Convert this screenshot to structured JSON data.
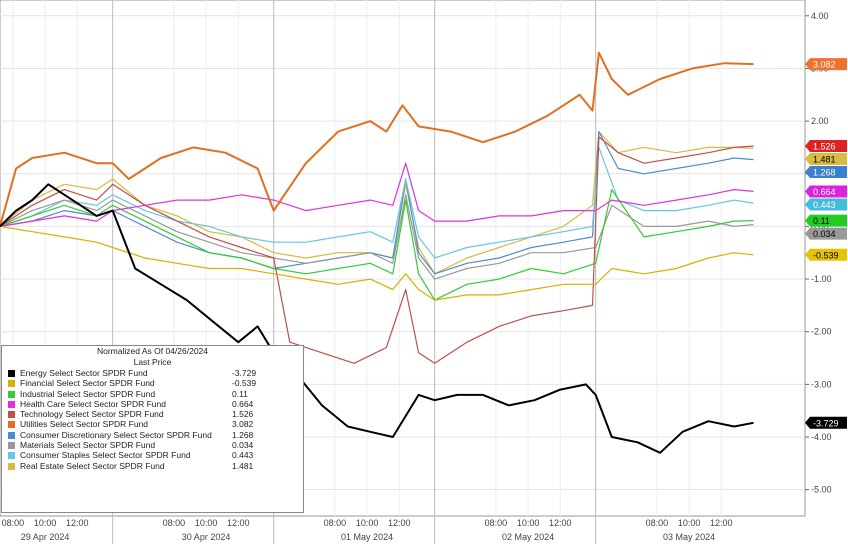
{
  "chart_data": {
    "type": "line",
    "ylim": [
      -5.5,
      4.3
    ],
    "y_ticks": [
      "4.00",
      "3.00",
      "2.00",
      "1.00",
      "0.00",
      "-1.00",
      "-2.00",
      "-3.00",
      "-4.00",
      "-5.00"
    ],
    "y_tick_values": [
      4,
      3,
      2,
      1,
      0,
      -1,
      -2,
      -3,
      -4,
      -5
    ],
    "x_tick_labels": [
      "08:00",
      "10:00",
      "12:00",
      "08:00",
      "10:00",
      "12:00",
      "08:00",
      "10:00",
      "12:00",
      "08:00",
      "10:00",
      "12:00",
      "08:00",
      "10:00",
      "12:00"
    ],
    "x_tick_positions": [
      0.4,
      1.4,
      2.4,
      5.4,
      6.4,
      7.4,
      10.4,
      11.4,
      12.4,
      15.4,
      16.4,
      17.4,
      20.4,
      21.4,
      22.4
    ],
    "date_labels": [
      "29 Apr 2024",
      "30 Apr 2024",
      "01 May 2024",
      "02 May 2024",
      "03 May 2024"
    ],
    "date_centers": [
      1.4,
      6.4,
      11.4,
      16.4,
      21.4
    ],
    "session_breaks": [
      3.5,
      8.5,
      13.5,
      18.5
    ],
    "grid": true,
    "legend_position": "bottom-left",
    "legend": {
      "title": "Normalized As Of 04/26/2024",
      "subtitle": "Last Price"
    },
    "series": [
      {
        "name": "Energy Select Sector SPDR Fund",
        "last": "-3.729",
        "color": "#000000",
        "label_bg": "#000000",
        "label_fg": "#ffffff",
        "x": [
          0,
          0.5,
          1.0,
          1.5,
          2.0,
          2.5,
          3.0,
          3.5,
          4.2,
          5.0,
          5.8,
          6.6,
          7.4,
          8.0,
          8.5,
          9.2,
          10.0,
          10.8,
          11.5,
          12.2,
          12.6,
          13.0,
          13.5,
          14.2,
          15.0,
          15.8,
          16.6,
          17.4,
          18.2,
          18.5,
          19.0,
          19.8,
          20.5,
          21.2,
          22.0,
          22.8,
          23.4
        ],
        "y": [
          0.0,
          0.3,
          0.5,
          0.8,
          0.6,
          0.4,
          0.2,
          0.3,
          -0.8,
          -1.1,
          -1.4,
          -1.8,
          -2.2,
          -1.9,
          -2.4,
          -2.8,
          -3.4,
          -3.8,
          -3.9,
          -4.0,
          -3.6,
          -3.2,
          -3.3,
          -3.2,
          -3.2,
          -3.4,
          -3.3,
          -3.1,
          -3.0,
          -3.2,
          -4.0,
          -4.1,
          -4.3,
          -3.9,
          -3.7,
          -3.8,
          -3.729
        ]
      },
      {
        "name": "Financial Select Sector SPDR Fund",
        "last": "-0.539",
        "color": "#d6b100",
        "label_bg": "#e8c400",
        "label_fg": "#000000",
        "x": [
          0,
          1.0,
          2.0,
          3.0,
          3.5,
          4.5,
          5.5,
          6.5,
          7.5,
          8.5,
          9.5,
          10.5,
          11.5,
          12.2,
          12.6,
          13.0,
          13.5,
          14.5,
          15.5,
          16.5,
          17.5,
          18.5,
          19.0,
          20.0,
          21.0,
          22.0,
          22.8,
          23.4
        ],
        "y": [
          0.0,
          -0.1,
          -0.2,
          -0.3,
          -0.4,
          -0.6,
          -0.7,
          -0.8,
          -0.8,
          -0.9,
          -1.0,
          -1.1,
          -1.0,
          -1.2,
          -0.9,
          -1.2,
          -1.4,
          -1.3,
          -1.3,
          -1.2,
          -1.1,
          -1.1,
          -0.8,
          -0.9,
          -0.8,
          -0.6,
          -0.5,
          -0.539
        ]
      },
      {
        "name": "Industrial Select Sector SPDR Fund",
        "last": "0.11",
        "color": "#33cc33",
        "label_bg": "#22cc22",
        "label_fg": "#000000",
        "x": [
          0,
          1.0,
          2.0,
          3.0,
          3.5,
          4.5,
          5.5,
          6.5,
          7.5,
          8.5,
          9.5,
          10.5,
          11.5,
          12.2,
          12.6,
          13.0,
          13.5,
          14.5,
          15.5,
          16.5,
          17.5,
          18.5,
          19.0,
          20.0,
          21.0,
          22.0,
          22.8,
          23.4
        ],
        "y": [
          0.0,
          0.2,
          0.4,
          0.2,
          0.4,
          0.1,
          -0.2,
          -0.5,
          -0.6,
          -0.8,
          -0.9,
          -0.8,
          -0.7,
          -0.9,
          0.5,
          -0.9,
          -1.4,
          -1.1,
          -1.0,
          -0.8,
          -0.9,
          -0.7,
          0.7,
          -0.2,
          -0.1,
          0.0,
          0.1,
          0.11
        ]
      },
      {
        "name": "Health Care Select Sector SPDR Fund",
        "last": "0.664",
        "color": "#dd33dd",
        "label_bg": "#dd22dd",
        "label_fg": "#ffffff",
        "x": [
          0,
          1.0,
          2.0,
          3.0,
          3.5,
          4.5,
          5.5,
          6.5,
          7.5,
          8.5,
          9.5,
          10.5,
          11.5,
          12.2,
          12.6,
          13.0,
          13.5,
          14.5,
          15.5,
          16.5,
          17.5,
          18.5,
          19.0,
          20.0,
          21.0,
          22.0,
          22.8,
          23.4
        ],
        "y": [
          0.0,
          0.1,
          0.2,
          0.1,
          0.3,
          0.4,
          0.5,
          0.5,
          0.6,
          0.5,
          0.3,
          0.4,
          0.5,
          0.4,
          1.2,
          0.3,
          0.1,
          0.1,
          0.2,
          0.2,
          0.3,
          0.3,
          0.5,
          0.4,
          0.5,
          0.6,
          0.7,
          0.664
        ]
      },
      {
        "name": "Technology Select Sector SPDR Fund",
        "last": "1.526",
        "color": "#c0504d",
        "label_bg": "#dd2222",
        "label_fg": "#ffffff",
        "x": [
          0,
          1.0,
          2.0,
          3.0,
          3.5,
          4.5,
          5.5,
          6.5,
          7.5,
          8.5,
          9.0,
          10.0,
          11.0,
          12.0,
          12.6,
          13.0,
          13.5,
          14.5,
          15.5,
          16.5,
          17.5,
          18.4,
          18.6,
          19.2,
          20.0,
          21.0,
          22.0,
          22.8,
          23.4
        ],
        "y": [
          0.0,
          0.4,
          0.7,
          0.5,
          0.8,
          0.4,
          0.1,
          -0.2,
          -0.4,
          -0.6,
          -2.2,
          -2.4,
          -2.6,
          -2.3,
          -1.2,
          -2.4,
          -2.6,
          -2.2,
          -1.9,
          -1.7,
          -1.6,
          -1.5,
          1.7,
          1.4,
          1.2,
          1.3,
          1.4,
          1.5,
          1.526
        ]
      },
      {
        "name": "Utilities Select Sector SPDR Fund",
        "last": "3.082",
        "color": "#e07020",
        "label_bg": "#f07030",
        "label_fg": "#ffffff",
        "x": [
          0,
          0.5,
          1.0,
          2.0,
          3.0,
          3.5,
          4.0,
          5.0,
          6.0,
          7.0,
          8.0,
          8.5,
          9.5,
          10.5,
          11.5,
          12.0,
          12.5,
          13.0,
          14.0,
          15.0,
          16.0,
          17.0,
          18.0,
          18.4,
          18.6,
          19.0,
          19.5,
          20.5,
          21.5,
          22.5,
          23.4
        ],
        "y": [
          0.0,
          1.1,
          1.3,
          1.4,
          1.2,
          1.2,
          0.9,
          1.3,
          1.5,
          1.4,
          1.1,
          0.3,
          1.2,
          1.8,
          2.0,
          1.8,
          2.3,
          1.9,
          1.8,
          1.6,
          1.8,
          2.1,
          2.5,
          2.2,
          3.3,
          2.8,
          2.5,
          2.8,
          3.0,
          3.1,
          3.082
        ]
      },
      {
        "name": "Consumer Discretionary Select Sector SPDR Fund",
        "last": "1.268",
        "color": "#4f8bd0",
        "label_bg": "#3a7fd0",
        "label_fg": "#ffffff",
        "x": [
          0,
          1.0,
          2.0,
          3.0,
          3.5,
          4.5,
          5.5,
          6.5,
          7.5,
          8.5,
          9.5,
          10.5,
          11.5,
          12.2,
          12.6,
          13.0,
          13.5,
          14.5,
          15.5,
          16.5,
          17.5,
          18.4,
          18.6,
          19.2,
          20.0,
          21.0,
          22.0,
          22.8,
          23.4
        ],
        "y": [
          0.0,
          0.1,
          0.3,
          0.2,
          0.3,
          0.0,
          -0.3,
          -0.5,
          -0.6,
          -0.8,
          -0.7,
          -0.6,
          -0.5,
          -0.6,
          0.9,
          -0.5,
          -0.9,
          -0.7,
          -0.6,
          -0.4,
          -0.3,
          -0.2,
          1.8,
          1.1,
          1.0,
          1.1,
          1.2,
          1.3,
          1.268
        ]
      },
      {
        "name": "Materials Select Sector SPDR Fund",
        "last": "0.034",
        "color": "#999999",
        "label_bg": "#999999",
        "label_fg": "#000000",
        "x": [
          0,
          1.0,
          2.0,
          3.0,
          3.5,
          4.5,
          5.5,
          6.5,
          7.5,
          8.5,
          9.5,
          10.5,
          11.5,
          12.2,
          12.6,
          13.0,
          13.5,
          14.5,
          15.5,
          16.5,
          17.5,
          18.5,
          19.0,
          20.0,
          21.0,
          22.0,
          22.8,
          23.4
        ],
        "y": [
          0.0,
          0.3,
          0.5,
          0.3,
          0.5,
          0.2,
          -0.1,
          -0.3,
          -0.5,
          -0.6,
          -0.7,
          -0.6,
          -0.5,
          -0.7,
          0.6,
          -0.6,
          -1.0,
          -0.8,
          -0.7,
          -0.5,
          -0.5,
          -0.4,
          0.4,
          0.0,
          0.0,
          0.1,
          0.0,
          0.034
        ]
      },
      {
        "name": "Consumer Staples Select Sector SPDR Fund",
        "last": "0.443",
        "color": "#66c8e0",
        "label_bg": "#44bbdd",
        "label_fg": "#ffffff",
        "x": [
          0,
          1.0,
          2.0,
          3.0,
          3.5,
          4.5,
          5.5,
          6.5,
          7.5,
          8.5,
          9.5,
          10.5,
          11.5,
          12.2,
          12.6,
          13.0,
          13.5,
          14.5,
          15.5,
          16.5,
          17.5,
          18.4,
          18.6,
          19.2,
          20.0,
          21.0,
          22.0,
          22.8,
          23.4
        ],
        "y": [
          0.0,
          0.2,
          0.5,
          0.4,
          0.6,
          0.3,
          0.1,
          0.0,
          -0.2,
          -0.3,
          -0.3,
          -0.2,
          -0.1,
          -0.3,
          0.9,
          -0.2,
          -0.6,
          -0.4,
          -0.3,
          -0.2,
          -0.1,
          0.0,
          1.5,
          0.5,
          0.3,
          0.3,
          0.4,
          0.5,
          0.443
        ]
      },
      {
        "name": "Real Estate Select Sector SPDR Fund",
        "last": "1.481",
        "color": "#d8bb40",
        "label_bg": "#d8bb40",
        "label_fg": "#000000",
        "x": [
          0,
          1.0,
          2.0,
          3.0,
          3.5,
          4.5,
          5.5,
          6.5,
          7.5,
          8.5,
          9.5,
          10.5,
          11.5,
          12.2,
          12.6,
          13.0,
          13.5,
          14.5,
          15.5,
          16.5,
          17.5,
          18.4,
          18.6,
          19.2,
          20.0,
          21.0,
          22.0,
          22.8,
          23.4
        ],
        "y": [
          0.0,
          0.5,
          0.8,
          0.7,
          0.9,
          0.4,
          0.2,
          -0.1,
          -0.2,
          -0.5,
          -0.6,
          -0.5,
          -0.5,
          -0.6,
          0.8,
          -0.4,
          -0.9,
          -0.6,
          -0.4,
          -0.2,
          0.0,
          0.4,
          1.8,
          1.4,
          1.5,
          1.4,
          1.5,
          1.5,
          1.481
        ]
      }
    ]
  }
}
